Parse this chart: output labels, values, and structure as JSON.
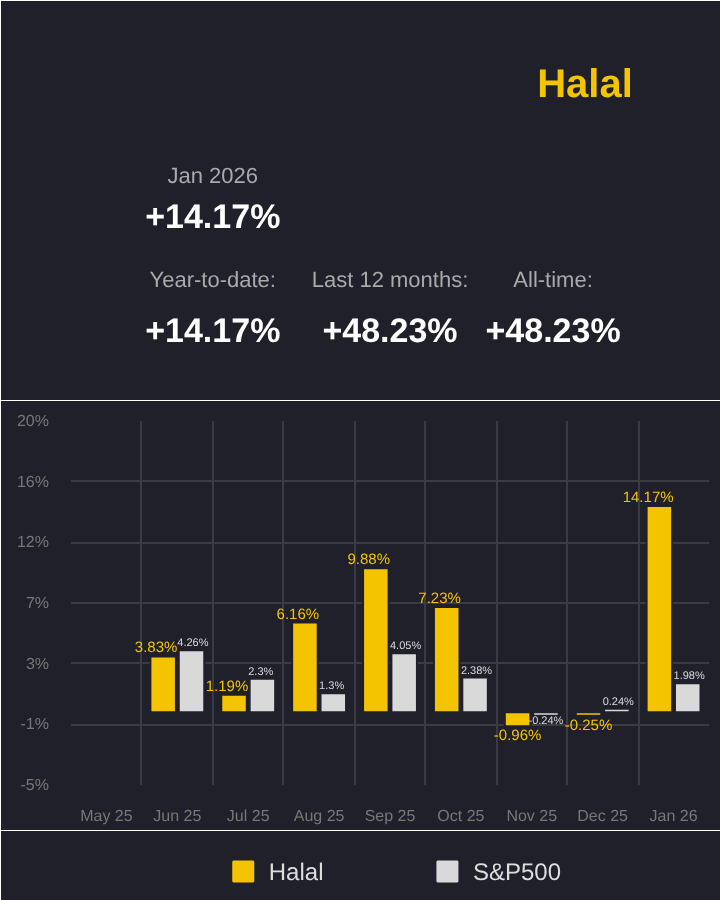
{
  "chart_data": {
    "type": "bar",
    "title": "Halal",
    "annotations": [
      "Jan 2026",
      "+14.17%",
      "Year-to-date:",
      "+14.17%",
      "Last 12 months:",
      "+48.23%",
      "All-time:",
      "+48.23%"
    ],
    "categories": [
      "May 25",
      "Jun 25",
      "Jul 25",
      "Aug 25",
      "Sep 25",
      "Oct 25",
      "Nov 25",
      "Dec 25",
      "Jan 26"
    ],
    "series": [
      {
        "name": "Halal",
        "color": "#f5c400",
        "values": [
          null,
          3.83,
          1.19,
          6.16,
          9.88,
          7.23,
          -0.96,
          -0.25,
          14.17
        ],
        "value_labels": [
          null,
          "3.83%",
          "1.19%",
          "6.16%",
          "9.88%",
          "7.23%",
          "-0.96%",
          "-0.25%",
          "14.17%"
        ]
      },
      {
        "name": "S&P500",
        "color": "#d9d9d9",
        "values": [
          null,
          4.26,
          2.3,
          1.3,
          4.05,
          2.38,
          -0.24,
          0.24,
          1.98
        ],
        "value_labels": [
          null,
          "4.26%",
          "2.3%",
          "1.3%",
          "4.05%",
          "2.38%",
          "-0.24%",
          "0.24%",
          "1.98%"
        ]
      }
    ],
    "ylim": [
      -5,
      20
    ],
    "yticks": [
      {
        "value": -5,
        "label": "-5%"
      },
      {
        "value": -0.83,
        "label": "-1%"
      },
      {
        "value": 3.33,
        "label": "3%"
      },
      {
        "value": 7.5,
        "label": "7%"
      },
      {
        "value": 11.67,
        "label": "12%"
      },
      {
        "value": 15.83,
        "label": "16%"
      },
      {
        "value": 20,
        "label": "20%"
      }
    ],
    "grid": true,
    "legend": "bottom"
  }
}
